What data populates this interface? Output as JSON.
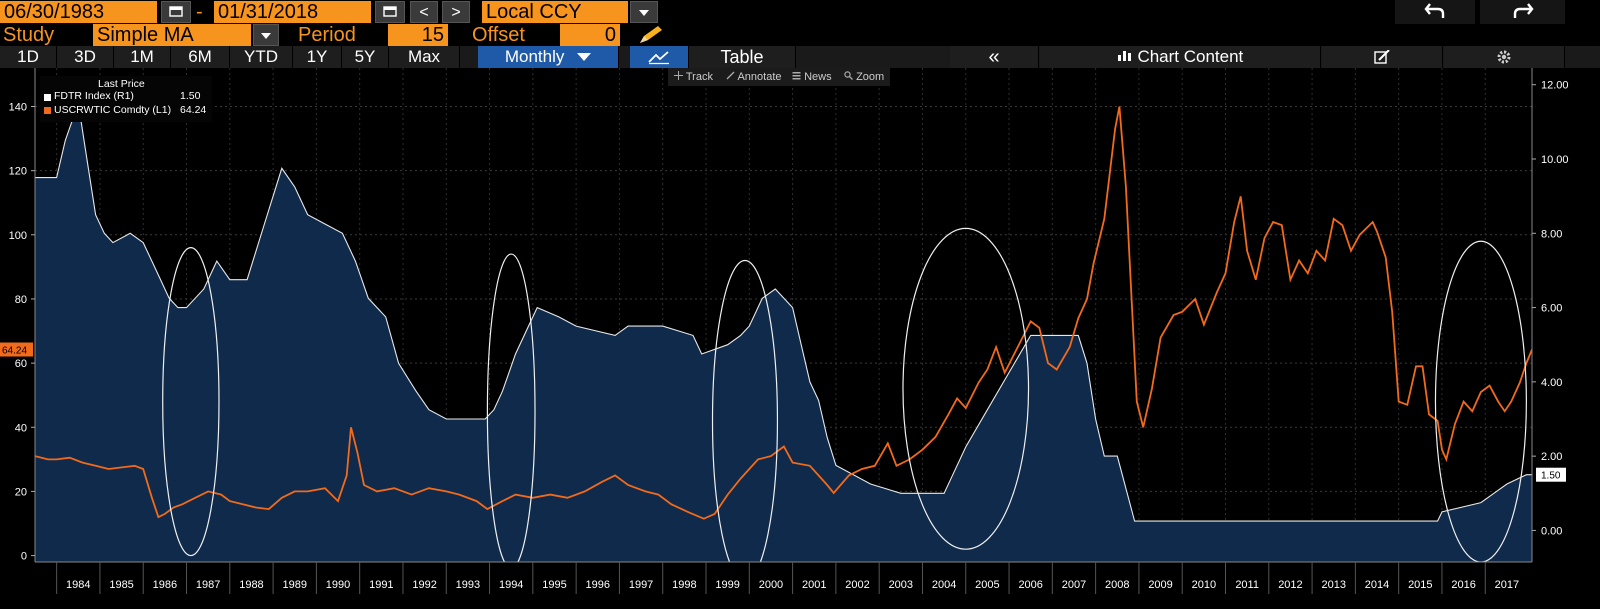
{
  "header": {
    "start_date": "06/30/1983",
    "end_date": "01/31/2018",
    "dash": "-",
    "prev_label": "<",
    "next_label": ">",
    "currency": "Local CCY",
    "undo_icon": "undo-icon",
    "redo_icon": "redo-icon"
  },
  "study": {
    "label": "Study",
    "value": "Simple MA",
    "period_label": "Period",
    "period_value": "15",
    "offset_label": "Offset",
    "offset_value": "0"
  },
  "periods": [
    "1D",
    "3D",
    "1M",
    "6M",
    "YTD",
    "1Y",
    "5Y",
    "Max"
  ],
  "active_period": "Monthly",
  "view_tabs": {
    "table": "Table",
    "collapse": "«",
    "chart_content": "Chart Content"
  },
  "toolbar": {
    "track": "Track",
    "annotate": "Annotate",
    "news": "News",
    "zoom": "Zoom"
  },
  "legend": {
    "title": "Last Price",
    "items": [
      {
        "name": "FDTR Index  (R1)",
        "value": "1.50",
        "color": "#ffffff"
      },
      {
        "name": "USCRWTIC Comdty  (L1)",
        "value": "64.24",
        "color": "#f26a1b"
      }
    ]
  },
  "colors": {
    "accent": "#f7941d",
    "fdtr_fill": "#0f2a4a",
    "oil": "#f26a1b",
    "active_tab": "#1f5aa8"
  },
  "chart_data": {
    "type": "line",
    "x_range": [
      1983.5,
      2018.08
    ],
    "x_tick_labels": [
      "1984",
      "1985",
      "1986",
      "1987",
      "1988",
      "1989",
      "1990",
      "1991",
      "1992",
      "1993",
      "1994",
      "1995",
      "1996",
      "1997",
      "1998",
      "1999",
      "2000",
      "2001",
      "2002",
      "2003",
      "2004",
      "2005",
      "2006",
      "2007",
      "2008",
      "2009",
      "2010",
      "2011",
      "2012",
      "2013",
      "2014",
      "2015",
      "2016",
      "2017"
    ],
    "left_axis": {
      "ticks": [
        0,
        20,
        40,
        60,
        80,
        100,
        120,
        140
      ],
      "range": [
        -2,
        152
      ]
    },
    "right_axis": {
      "ticks": [
        "0.00",
        "2.00",
        "4.00",
        "6.00",
        "8.00",
        "10.00",
        "12.00"
      ],
      "range": [
        -0.85,
        12.45
      ]
    },
    "last_price_left": "64.24",
    "last_price_right": "1.50",
    "series": [
      {
        "name": "FDTR Index  (R1)",
        "axis": "right",
        "style": "area",
        "color": "#ffffff",
        "points": [
          [
            1983.5,
            9.5
          ],
          [
            1984.0,
            9.5
          ],
          [
            1984.2,
            10.5
          ],
          [
            1984.5,
            11.5
          ],
          [
            1984.7,
            10
          ],
          [
            1984.9,
            8.5
          ],
          [
            1985.1,
            8.0
          ],
          [
            1985.3,
            7.75
          ],
          [
            1985.7,
            8.0
          ],
          [
            1986.0,
            7.75
          ],
          [
            1986.3,
            7.0
          ],
          [
            1986.6,
            6.25
          ],
          [
            1986.8,
            6.0
          ],
          [
            1987.0,
            6.0
          ],
          [
            1987.4,
            6.5
          ],
          [
            1987.7,
            7.25
          ],
          [
            1988.0,
            6.75
          ],
          [
            1988.4,
            6.75
          ],
          [
            1988.8,
            8.25
          ],
          [
            1989.2,
            9.75
          ],
          [
            1989.5,
            9.25
          ],
          [
            1989.8,
            8.5
          ],
          [
            1990.2,
            8.25
          ],
          [
            1990.6,
            8.0
          ],
          [
            1990.9,
            7.25
          ],
          [
            1991.2,
            6.25
          ],
          [
            1991.6,
            5.75
          ],
          [
            1991.9,
            4.5
          ],
          [
            1992.3,
            3.75
          ],
          [
            1992.6,
            3.25
          ],
          [
            1993.0,
            3.0
          ],
          [
            1993.9,
            3.0
          ],
          [
            1994.1,
            3.25
          ],
          [
            1994.3,
            3.75
          ],
          [
            1994.6,
            4.75
          ],
          [
            1994.9,
            5.5
          ],
          [
            1995.1,
            6.0
          ],
          [
            1995.6,
            5.75
          ],
          [
            1996.0,
            5.5
          ],
          [
            1996.9,
            5.25
          ],
          [
            1997.2,
            5.5
          ],
          [
            1998.0,
            5.5
          ],
          [
            1998.7,
            5.25
          ],
          [
            1998.9,
            4.75
          ],
          [
            1999.5,
            5.0
          ],
          [
            1999.8,
            5.25
          ],
          [
            2000.0,
            5.5
          ],
          [
            2000.3,
            6.25
          ],
          [
            2000.6,
            6.5
          ],
          [
            2001.0,
            6.0
          ],
          [
            2001.2,
            5.0
          ],
          [
            2001.4,
            4.0
          ],
          [
            2001.6,
            3.5
          ],
          [
            2001.8,
            2.5
          ],
          [
            2002.0,
            1.75
          ],
          [
            2002.8,
            1.25
          ],
          [
            2003.5,
            1.0
          ],
          [
            2004.5,
            1.0
          ],
          [
            2004.7,
            1.5
          ],
          [
            2005.0,
            2.25
          ],
          [
            2005.5,
            3.25
          ],
          [
            2006.0,
            4.25
          ],
          [
            2006.5,
            5.25
          ],
          [
            2007.6,
            5.25
          ],
          [
            2007.8,
            4.5
          ],
          [
            2008.0,
            3.0
          ],
          [
            2008.2,
            2.0
          ],
          [
            2008.5,
            2.0
          ],
          [
            2008.9,
            0.25
          ],
          [
            2015.9,
            0.25
          ],
          [
            2016.0,
            0.5
          ],
          [
            2016.9,
            0.75
          ],
          [
            2017.2,
            1.0
          ],
          [
            2017.5,
            1.25
          ],
          [
            2017.95,
            1.5
          ],
          [
            2018.08,
            1.5
          ]
        ]
      },
      {
        "name": "USCRWTIC Comdty  (L1)",
        "axis": "left",
        "style": "line",
        "color": "#f26a1b",
        "points": [
          [
            1983.5,
            31
          ],
          [
            1983.8,
            30
          ],
          [
            1984.0,
            30
          ],
          [
            1984.3,
            30.5
          ],
          [
            1984.6,
            29
          ],
          [
            1984.9,
            28
          ],
          [
            1985.2,
            27
          ],
          [
            1985.5,
            27.5
          ],
          [
            1985.8,
            28
          ],
          [
            1986.0,
            27
          ],
          [
            1986.2,
            18
          ],
          [
            1986.35,
            12
          ],
          [
            1986.5,
            13
          ],
          [
            1986.7,
            15
          ],
          [
            1986.9,
            16
          ],
          [
            1987.2,
            18
          ],
          [
            1987.5,
            20
          ],
          [
            1987.8,
            19
          ],
          [
            1988.0,
            17
          ],
          [
            1988.3,
            16
          ],
          [
            1988.6,
            15
          ],
          [
            1988.9,
            14.5
          ],
          [
            1989.2,
            18
          ],
          [
            1989.5,
            20
          ],
          [
            1989.8,
            20
          ],
          [
            1990.2,
            21
          ],
          [
            1990.5,
            17
          ],
          [
            1990.7,
            25
          ],
          [
            1990.8,
            40
          ],
          [
            1990.95,
            32
          ],
          [
            1991.1,
            22
          ],
          [
            1991.4,
            20
          ],
          [
            1991.8,
            21
          ],
          [
            1992.2,
            19
          ],
          [
            1992.6,
            21
          ],
          [
            1993.0,
            20
          ],
          [
            1993.3,
            19
          ],
          [
            1993.7,
            17
          ],
          [
            1993.95,
            14.5
          ],
          [
            1994.3,
            17
          ],
          [
            1994.6,
            19
          ],
          [
            1995.0,
            18
          ],
          [
            1995.4,
            19
          ],
          [
            1995.8,
            18
          ],
          [
            1996.2,
            20
          ],
          [
            1996.6,
            23
          ],
          [
            1996.9,
            25
          ],
          [
            1997.2,
            22
          ],
          [
            1997.6,
            20
          ],
          [
            1997.9,
            19
          ],
          [
            1998.2,
            16
          ],
          [
            1998.6,
            13.5
          ],
          [
            1998.95,
            11.5
          ],
          [
            1999.2,
            13
          ],
          [
            1999.5,
            19
          ],
          [
            1999.8,
            24
          ],
          [
            2000.0,
            27
          ],
          [
            2000.2,
            30
          ],
          [
            2000.5,
            31
          ],
          [
            2000.8,
            34
          ],
          [
            2001.0,
            29
          ],
          [
            2001.4,
            28
          ],
          [
            2001.8,
            22
          ],
          [
            2001.95,
            19.5
          ],
          [
            2002.3,
            25
          ],
          [
            2002.6,
            27
          ],
          [
            2002.9,
            28
          ],
          [
            2003.2,
            35
          ],
          [
            2003.4,
            28
          ],
          [
            2003.7,
            30
          ],
          [
            2004.0,
            33
          ],
          [
            2004.3,
            37
          ],
          [
            2004.6,
            44
          ],
          [
            2004.8,
            49
          ],
          [
            2005.0,
            46
          ],
          [
            2005.3,
            54
          ],
          [
            2005.5,
            58
          ],
          [
            2005.7,
            65
          ],
          [
            2005.9,
            57
          ],
          [
            2006.2,
            65
          ],
          [
            2006.5,
            73
          ],
          [
            2006.7,
            71
          ],
          [
            2006.9,
            60
          ],
          [
            2007.1,
            58
          ],
          [
            2007.4,
            65
          ],
          [
            2007.6,
            74
          ],
          [
            2007.8,
            80
          ],
          [
            2007.95,
            91
          ],
          [
            2008.2,
            105
          ],
          [
            2008.45,
            133
          ],
          [
            2008.55,
            140
          ],
          [
            2008.7,
            115
          ],
          [
            2008.85,
            75
          ],
          [
            2008.95,
            48
          ],
          [
            2009.1,
            40
          ],
          [
            2009.3,
            52
          ],
          [
            2009.5,
            68
          ],
          [
            2009.8,
            75
          ],
          [
            2010.0,
            76
          ],
          [
            2010.3,
            80
          ],
          [
            2010.5,
            72
          ],
          [
            2010.8,
            82
          ],
          [
            2011.0,
            88
          ],
          [
            2011.2,
            104
          ],
          [
            2011.35,
            112
          ],
          [
            2011.5,
            95
          ],
          [
            2011.7,
            86
          ],
          [
            2011.9,
            99
          ],
          [
            2012.1,
            104
          ],
          [
            2012.3,
            103
          ],
          [
            2012.5,
            86
          ],
          [
            2012.7,
            92
          ],
          [
            2012.9,
            88
          ],
          [
            2013.1,
            95
          ],
          [
            2013.3,
            92
          ],
          [
            2013.5,
            105
          ],
          [
            2013.7,
            103
          ],
          [
            2013.9,
            95
          ],
          [
            2014.1,
            100
          ],
          [
            2014.4,
            104
          ],
          [
            2014.5,
            101
          ],
          [
            2014.7,
            93
          ],
          [
            2014.85,
            76
          ],
          [
            2015.0,
            48
          ],
          [
            2015.2,
            47
          ],
          [
            2015.4,
            59
          ],
          [
            2015.55,
            59
          ],
          [
            2015.7,
            44
          ],
          [
            2015.9,
            42
          ],
          [
            2016.0,
            33
          ],
          [
            2016.1,
            30
          ],
          [
            2016.3,
            41
          ],
          [
            2016.5,
            48
          ],
          [
            2016.7,
            45
          ],
          [
            2016.9,
            51
          ],
          [
            2017.1,
            53
          ],
          [
            2017.3,
            48
          ],
          [
            2017.45,
            45
          ],
          [
            2017.6,
            48
          ],
          [
            2017.8,
            54
          ],
          [
            2017.95,
            60
          ],
          [
            2018.08,
            64.24
          ]
        ]
      }
    ],
    "highlight_ellipses": [
      {
        "cx": 1987.1,
        "cy": 48,
        "rx": 0.65,
        "ry": 48
      },
      {
        "cx": 1994.5,
        "cy": 45,
        "rx": 0.55,
        "ry": 49
      },
      {
        "cx": 1999.9,
        "cy": 42,
        "rx": 0.75,
        "ry": 50
      },
      {
        "cx": 2005.0,
        "cy": 52,
        "rx": 1.45,
        "ry": 50
      },
      {
        "cx": 2016.9,
        "cy": 48,
        "rx": 1.05,
        "ry": 50
      }
    ]
  }
}
